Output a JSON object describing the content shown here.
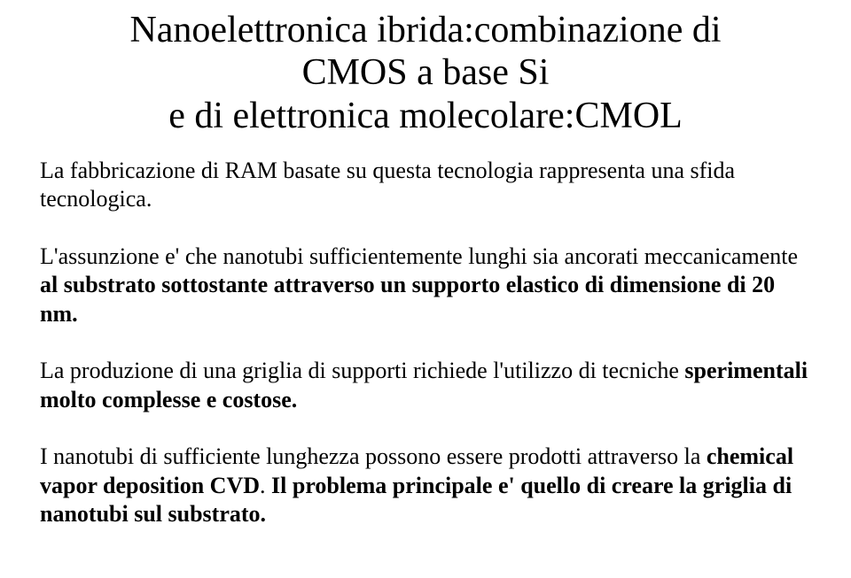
{
  "title_color": "#000000",
  "body_color": "#000000",
  "background_color": "#ffffff",
  "title_fontsize": 42,
  "body_fontsize": 26,
  "title": {
    "line1": "Nanoelettronica ibrida:combinazione di",
    "line2": "CMOS a base Si",
    "line3": "e di elettronica molecolare:CMOL"
  },
  "p1": "La fabbricazione di RAM basate su questa tecnologia rappresenta una sfida tecnologica.",
  "p2": {
    "pre": "L'assunzione e' che nanotubi sufficientemente lunghi sia ancorati meccanicamente ",
    "bold1": "al substrato sottostante attraverso un supporto elastico di dimensione di 20 nm.",
    "post": ""
  },
  "p3": {
    "pre": "La produzione di una griglia di supporti richiede l'utilizzo di tecniche ",
    "bold1": "sperimentali molto complesse e costose."
  },
  "p4": {
    "pre": "I nanotubi di sufficiente lunghezza possono essere prodotti attraverso la ",
    "bold1": "chemical vapor deposition CVD",
    "mid": ". ",
    "bold2": "Il problema principale e' quello di creare la griglia di nanotubi sul substrato."
  }
}
